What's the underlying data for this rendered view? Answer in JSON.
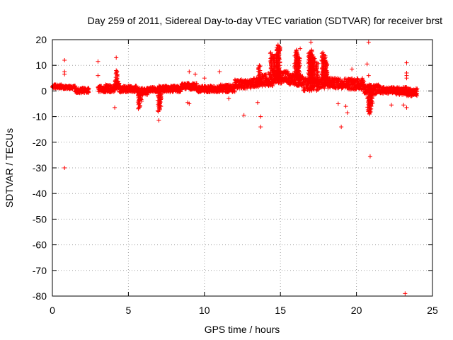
{
  "chart_data": {
    "type": "scatter",
    "title": "Day 259 of 2011, Sidereal Day-to-day VTEC variation (SDTVAR) for receiver brst",
    "xlabel": "GPS time / hours",
    "ylabel": "SDTVAR / TECUs",
    "xlim": [
      0,
      25
    ],
    "ylim": [
      -80,
      20
    ],
    "xticks": [
      0,
      5,
      10,
      15,
      20,
      25
    ],
    "yticks": [
      20,
      10,
      0,
      -10,
      -20,
      -30,
      -40,
      -50,
      -60,
      -70,
      -80
    ],
    "grid": true,
    "marker": "+",
    "color": "#ff0000",
    "series": [
      {
        "name": "SDTVAR",
        "bands": [
          {
            "x": [
              0.0,
              0.6
            ],
            "y": [
              1.0,
              2.5
            ]
          },
          {
            "x": [
              0.6,
              1.5
            ],
            "y": [
              0.8,
              2.0
            ]
          },
          {
            "x": [
              1.5,
              2.4
            ],
            "y": [
              -0.8,
              1.2
            ]
          },
          {
            "x": [
              3.0,
              3.5
            ],
            "y": [
              -0.5,
              2.0
            ]
          },
          {
            "x": [
              3.5,
              4.1
            ],
            "y": [
              -0.5,
              2.5
            ]
          },
          {
            "x": [
              4.1,
              4.4
            ],
            "y": [
              0.5,
              4.0
            ]
          },
          {
            "x": [
              4.4,
              5.6
            ],
            "y": [
              -0.5,
              2.0
            ]
          },
          {
            "x": [
              5.6,
              6.3
            ],
            "y": [
              -1.5,
              1.2
            ]
          },
          {
            "x": [
              6.3,
              7.0
            ],
            "y": [
              -0.5,
              1.5
            ]
          },
          {
            "x": [
              7.0,
              8.5
            ],
            "y": [
              -0.5,
              2.0
            ]
          },
          {
            "x": [
              8.5,
              9.5
            ],
            "y": [
              0.5,
              3.0
            ]
          },
          {
            "x": [
              9.5,
              11.0
            ],
            "y": [
              -0.5,
              2.0
            ]
          },
          {
            "x": [
              11.0,
              12.0
            ],
            "y": [
              -0.5,
              2.5
            ]
          },
          {
            "x": [
              12.0,
              13.2
            ],
            "y": [
              1.0,
              4.5
            ]
          },
          {
            "x": [
              13.2,
              13.8
            ],
            "y": [
              1.5,
              5.0
            ]
          },
          {
            "x": [
              13.8,
              14.5
            ],
            "y": [
              2.0,
              6.5
            ]
          },
          {
            "x": [
              14.5,
              15.5
            ],
            "y": [
              3.0,
              8.0
            ]
          },
          {
            "x": [
              15.5,
              16.5
            ],
            "y": [
              2.0,
              6.5
            ]
          },
          {
            "x": [
              16.5,
              17.5
            ],
            "y": [
              0.0,
              5.0
            ]
          },
          {
            "x": [
              17.5,
              18.5
            ],
            "y": [
              1.0,
              5.5
            ]
          },
          {
            "x": [
              18.5,
              19.5
            ],
            "y": [
              1.0,
              5.0
            ]
          },
          {
            "x": [
              19.5,
              20.5
            ],
            "y": [
              0.5,
              5.0
            ]
          },
          {
            "x": [
              20.5,
              21.5
            ],
            "y": [
              -1.5,
              2.5
            ]
          },
          {
            "x": [
              21.5,
              22.5
            ],
            "y": [
              -1.0,
              1.5
            ]
          },
          {
            "x": [
              22.5,
              23.3
            ],
            "y": [
              -1.5,
              1.5
            ]
          },
          {
            "x": [
              23.3,
              24.0
            ],
            "y": [
              -2.0,
              1.0
            ]
          }
        ],
        "spikes": [
          {
            "x": 4.2,
            "y": [
              1,
              8
            ]
          },
          {
            "x": 5.7,
            "y": [
              -7,
              1
            ]
          },
          {
            "x": 5.8,
            "y": [
              -4,
              1
            ]
          },
          {
            "x": 7.0,
            "y": [
              -8,
              0
            ]
          },
          {
            "x": 7.1,
            "y": [
              -6,
              0
            ]
          },
          {
            "x": 13.6,
            "y": [
              5,
              10
            ]
          },
          {
            "x": 14.4,
            "y": [
              5,
              15
            ]
          },
          {
            "x": 14.6,
            "y": [
              5,
              14
            ]
          },
          {
            "x": 14.8,
            "y": [
              4,
              17
            ]
          },
          {
            "x": 14.9,
            "y": [
              4,
              18
            ]
          },
          {
            "x": 16.0,
            "y": [
              5,
              15
            ]
          },
          {
            "x": 16.1,
            "y": [
              5,
              16
            ]
          },
          {
            "x": 16.2,
            "y": [
              4,
              13
            ]
          },
          {
            "x": 16.9,
            "y": [
              3,
              15
            ]
          },
          {
            "x": 17.0,
            "y": [
              3,
              16
            ]
          },
          {
            "x": 17.1,
            "y": [
              3,
              14
            ]
          },
          {
            "x": 17.2,
            "y": [
              3,
              13
            ]
          },
          {
            "x": 17.4,
            "y": [
              3,
              11
            ]
          },
          {
            "x": 17.8,
            "y": [
              4,
              15
            ]
          },
          {
            "x": 17.9,
            "y": [
              4,
              14
            ]
          },
          {
            "x": 18.0,
            "y": [
              4,
              12
            ]
          },
          {
            "x": 20.8,
            "y": [
              -8,
              0
            ]
          },
          {
            "x": 20.9,
            "y": [
              -9,
              0
            ]
          },
          {
            "x": 21.0,
            "y": [
              -6,
              1
            ]
          }
        ],
        "outliers": [
          [
            0.8,
            12
          ],
          [
            0.8,
            6.5
          ],
          [
            0.8,
            7.5
          ],
          [
            0.8,
            -30
          ],
          [
            3.0,
            11.5
          ],
          [
            3.0,
            6
          ],
          [
            4.2,
            13
          ],
          [
            4.1,
            -6.5
          ],
          [
            7.0,
            -11.5
          ],
          [
            9.0,
            7.5
          ],
          [
            9.4,
            6.5
          ],
          [
            8.9,
            -4.5
          ],
          [
            9.0,
            -5
          ],
          [
            10.0,
            5
          ],
          [
            11.0,
            7.5
          ],
          [
            11.6,
            -3
          ],
          [
            12.6,
            -9.5
          ],
          [
            13.7,
            -10
          ],
          [
            13.7,
            -14
          ],
          [
            13.5,
            -4.5
          ],
          [
            14.2,
            7
          ],
          [
            14.5,
            7
          ],
          [
            16.3,
            16.5
          ],
          [
            17.0,
            19
          ],
          [
            17.7,
            12
          ],
          [
            19.0,
            -14
          ],
          [
            19.3,
            -6
          ],
          [
            19.4,
            -8.5
          ],
          [
            19.7,
            8.5
          ],
          [
            18.8,
            -5
          ],
          [
            20.8,
            19
          ],
          [
            20.7,
            10.5
          ],
          [
            20.8,
            6
          ],
          [
            20.9,
            -25.5
          ],
          [
            22.3,
            -5.5
          ],
          [
            23.1,
            -5.5
          ],
          [
            23.3,
            11
          ],
          [
            23.3,
            7
          ],
          [
            23.3,
            6
          ],
          [
            23.3,
            5
          ],
          [
            23.3,
            -6.5
          ],
          [
            23.2,
            -79
          ],
          [
            23.9,
            -1.5
          ]
        ]
      }
    ]
  }
}
